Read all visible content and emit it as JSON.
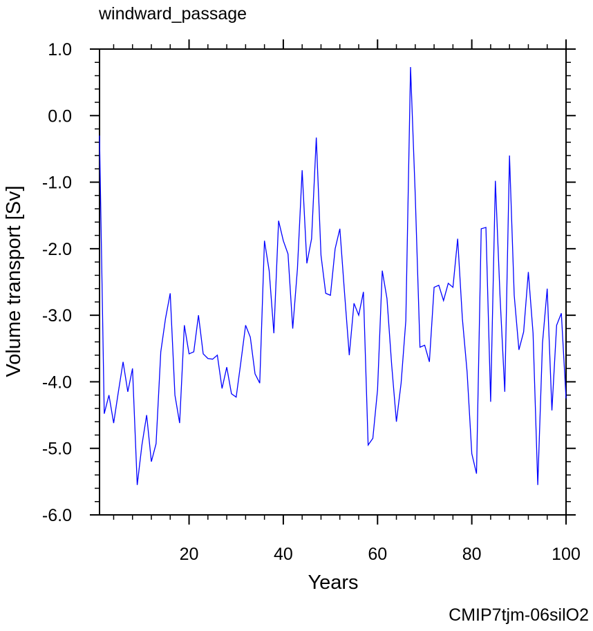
{
  "chart_data": {
    "type": "line",
    "title": "windward_passage",
    "xlabel": "Years",
    "ylabel": "Volume transport [Sv]",
    "xlim": [
      1,
      100
    ],
    "ylim": [
      -6.0,
      1.0
    ],
    "xticks": [
      20,
      40,
      60,
      80,
      100
    ],
    "xtick_labels": [
      "20",
      "40",
      "60",
      "80",
      "100"
    ],
    "yticks": [
      1.0,
      0.0,
      -1.0,
      -2.0,
      -3.0,
      -4.0,
      -5.0,
      -6.0
    ],
    "ytick_labels": [
      "1.0",
      "0.0",
      "-1.0",
      "-2.0",
      "-3.0",
      "-4.0",
      "-5.0",
      "-6.0"
    ],
    "grid": false,
    "series": [
      {
        "color": "#0000ff",
        "x": [
          1,
          2,
          3,
          4,
          5,
          6,
          7,
          8,
          9,
          10,
          11,
          12,
          13,
          14,
          15,
          16,
          17,
          18,
          19,
          20,
          21,
          22,
          23,
          24,
          25,
          26,
          27,
          28,
          29,
          30,
          31,
          32,
          33,
          34,
          35,
          36,
          37,
          38,
          39,
          40,
          41,
          42,
          43,
          44,
          45,
          46,
          47,
          48,
          49,
          50,
          51,
          52,
          53,
          54,
          55,
          56,
          57,
          58,
          59,
          60,
          61,
          62,
          63,
          64,
          65,
          66,
          67,
          68,
          69,
          70,
          71,
          72,
          73,
          74,
          75,
          76,
          77,
          78,
          79,
          80,
          81,
          82,
          83,
          84,
          85,
          86,
          87,
          88,
          89,
          90,
          91,
          92,
          93,
          94,
          95,
          96,
          97,
          98,
          99,
          100
        ],
        "values": [
          -0.3,
          -4.48,
          -4.2,
          -4.62,
          -4.15,
          -3.7,
          -4.15,
          -3.8,
          -5.55,
          -4.95,
          -4.5,
          -5.2,
          -4.93,
          -3.55,
          -3.05,
          -2.67,
          -4.2,
          -4.62,
          -3.15,
          -3.58,
          -3.55,
          -3.0,
          -3.58,
          -3.65,
          -3.66,
          -3.6,
          -4.1,
          -3.78,
          -4.18,
          -4.23,
          -3.7,
          -3.15,
          -3.33,
          -3.88,
          -4.02,
          -1.88,
          -2.33,
          -3.27,
          -1.58,
          -1.88,
          -2.08,
          -3.2,
          -2.3,
          -0.82,
          -2.22,
          -1.85,
          -0.33,
          -2.1,
          -2.67,
          -2.7,
          -2.0,
          -1.7,
          -2.67,
          -3.6,
          -2.82,
          -3.0,
          -2.65,
          -4.95,
          -4.85,
          -4.12,
          -2.33,
          -2.75,
          -3.75,
          -4.6,
          -4.02,
          -3.08,
          0.73,
          -1.2,
          -3.48,
          -3.45,
          -3.7,
          -2.58,
          -2.55,
          -2.78,
          -2.52,
          -2.58,
          -1.85,
          -3.05,
          -3.85,
          -5.08,
          -5.38,
          -1.7,
          -1.68,
          -4.3,
          -0.98,
          -2.73,
          -4.15,
          -0.6,
          -2.7,
          -3.52,
          -3.25,
          -2.35,
          -3.27,
          -5.55,
          -3.42,
          -2.6,
          -4.43,
          -3.15,
          -2.97,
          -4.25
        ]
      }
    ]
  },
  "footer": {
    "experiment_id": "CMIP7tjm-06silO2",
    "experiment_color": "#0000ff"
  }
}
